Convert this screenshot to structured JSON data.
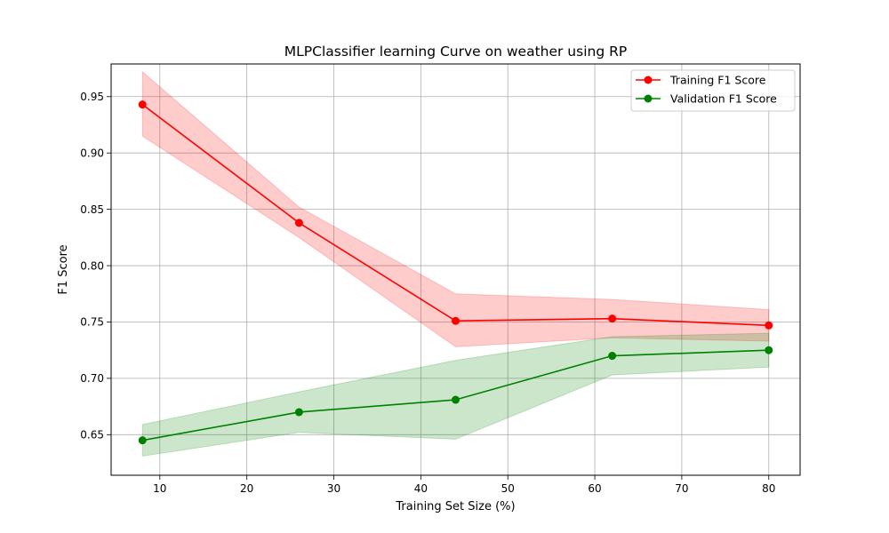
{
  "chart_data": {
    "type": "line",
    "title": "MLPClassifier learning Curve on weather using RP",
    "xlabel": "Training Set Size (%)",
    "ylabel": "F1 Score",
    "xlim": [
      4.4,
      83.6
    ],
    "ylim": [
      0.614,
      0.979
    ],
    "x_ticks": [
      10,
      20,
      30,
      40,
      50,
      60,
      70,
      80
    ],
    "y_ticks": [
      0.65,
      0.7,
      0.75,
      0.8,
      0.85,
      0.9,
      0.95
    ],
    "x_tick_labels": [
      "10",
      "20",
      "30",
      "40",
      "50",
      "60",
      "70",
      "80"
    ],
    "y_tick_labels": [
      "0.65",
      "0.70",
      "0.75",
      "0.80",
      "0.85",
      "0.90",
      "0.95"
    ],
    "grid": true,
    "legend_position": "top-right",
    "x": [
      8,
      26,
      44,
      62,
      80
    ],
    "series": [
      {
        "name": "Training F1 Score",
        "color": "#ff0000",
        "band_color": "#ff0000",
        "values": [
          0.943,
          0.838,
          0.751,
          0.753,
          0.747
        ],
        "upper": [
          0.972,
          0.852,
          0.775,
          0.77,
          0.761
        ],
        "lower": [
          0.915,
          0.825,
          0.728,
          0.736,
          0.733
        ]
      },
      {
        "name": "Validation F1 Score",
        "color": "#008000",
        "band_color": "#008000",
        "values": [
          0.645,
          0.67,
          0.681,
          0.72,
          0.725
        ],
        "upper": [
          0.659,
          0.688,
          0.716,
          0.737,
          0.74
        ],
        "lower": [
          0.631,
          0.652,
          0.646,
          0.703,
          0.71
        ]
      }
    ]
  }
}
